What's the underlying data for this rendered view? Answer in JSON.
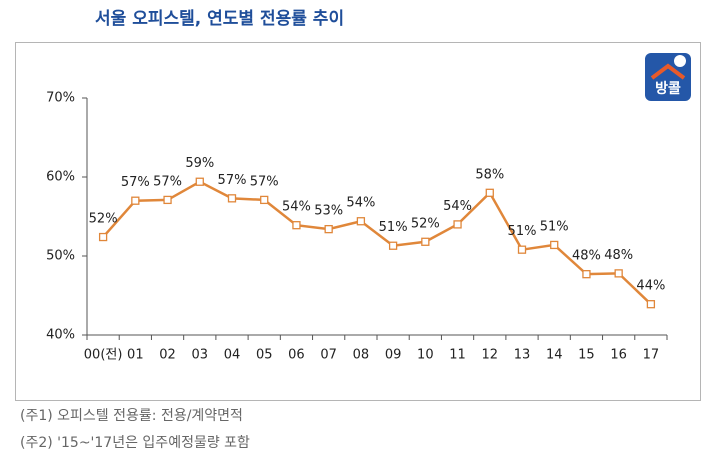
{
  "chart_data": {
    "type": "line",
    "title": "서울 오피스텔, 연도별 전용률 추이",
    "categories": [
      "00(전)",
      "01",
      "02",
      "03",
      "04",
      "05",
      "06",
      "07",
      "08",
      "09",
      "10",
      "11",
      "12",
      "13",
      "14",
      "15",
      "16",
      "17"
    ],
    "series": [
      {
        "name": "전용률",
        "color": "#e0873a",
        "values": [
          52.4,
          57.0,
          57.1,
          59.4,
          57.3,
          57.1,
          53.9,
          53.4,
          54.4,
          51.3,
          51.8,
          54.0,
          58.0,
          50.8,
          51.4,
          47.7,
          47.8,
          43.9
        ],
        "value_labels": [
          "52%",
          "57%",
          "57%",
          "59%",
          "57%",
          "57%",
          "54%",
          "53%",
          "54%",
          "51%",
          "52%",
          "54%",
          "58%",
          "51%",
          "51%",
          "48%",
          "48%",
          "44%"
        ]
      }
    ],
    "ylim": [
      40,
      70
    ],
    "yticks": [
      {
        "value": 40,
        "label": "40%"
      },
      {
        "value": 50,
        "label": "50%"
      },
      {
        "value": 60,
        "label": "60%"
      },
      {
        "value": 70,
        "label": "70%"
      }
    ],
    "grid": false
  },
  "footnotes": [
    "(주1) 오피스텔 전용률: 전용/계약면적",
    "(주2) '15~'17년은 입주예정물량 포함"
  ],
  "logo": {
    "text": "방콜"
  }
}
